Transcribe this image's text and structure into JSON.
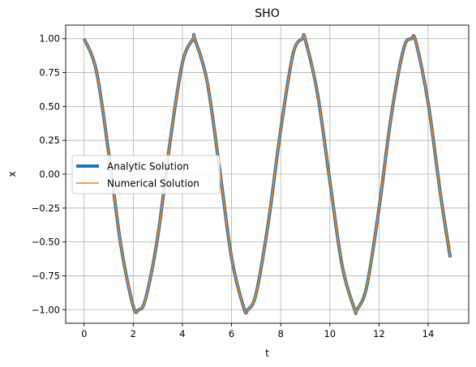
{
  "chart_data": {
    "type": "line",
    "title": "SHO",
    "xlabel": "t",
    "ylabel": "x",
    "xlim": [
      -0.75,
      15.65
    ],
    "ylim": [
      -1.1,
      1.1
    ],
    "xticks": [
      0,
      2,
      4,
      6,
      8,
      10,
      12,
      14
    ],
    "xtick_labels": [
      "0",
      "2",
      "4",
      "6",
      "8",
      "10",
      "12",
      "14"
    ],
    "yticks": [
      -1.0,
      -0.75,
      -0.5,
      -0.25,
      0.0,
      0.25,
      0.5,
      0.75,
      1.0
    ],
    "ytick_labels": [
      "−1.00",
      "−0.75",
      "−0.50",
      "−0.25",
      "0.00",
      "0.25",
      "0.50",
      "0.75",
      "1.00"
    ],
    "grid": true,
    "legend_position": "center-left",
    "series": [
      {
        "name": "Analytic Solution",
        "color": "#1f77b4",
        "x": [
          0,
          0.5,
          1.0,
          1.5,
          2.0,
          2.22,
          2.5,
          3.0,
          3.5,
          4.0,
          4.44,
          4.5,
          5.0,
          5.5,
          6.0,
          6.5,
          6.66,
          7.0,
          7.5,
          8.0,
          8.5,
          8.88,
          9.0,
          9.5,
          10.0,
          10.5,
          11.0,
          11.1,
          11.5,
          12.0,
          12.5,
          13.0,
          13.32,
          13.5,
          14.0,
          14.5,
          14.9
        ],
        "y": [
          1.0,
          0.761,
          0.157,
          -0.53,
          -0.975,
          -1.0,
          -0.92,
          -0.456,
          0.243,
          0.821,
          1.0,
          0.998,
          0.69,
          0.057,
          -0.617,
          -0.987,
          -1.0,
          -0.88,
          -0.352,
          0.328,
          0.886,
          1.0,
          0.992,
          0.591,
          -0.05,
          -0.676,
          -0.994,
          -1.0,
          -0.83,
          -0.253,
          0.432,
          0.924,
          1.0,
          0.977,
          0.526,
          -0.146,
          -0.615
        ]
      },
      {
        "name": "Numerical Solution",
        "color": "#ff7f0e",
        "x": [
          0,
          0.5,
          1.0,
          1.5,
          2.0,
          2.22,
          2.5,
          3.0,
          3.5,
          4.0,
          4.44,
          4.5,
          5.0,
          5.5,
          6.0,
          6.5,
          6.66,
          7.0,
          7.5,
          8.0,
          8.5,
          8.88,
          9.0,
          9.5,
          10.0,
          10.5,
          11.0,
          11.1,
          11.5,
          12.0,
          12.5,
          13.0,
          13.32,
          13.5,
          14.0,
          14.5,
          14.9
        ],
        "y": [
          1.0,
          0.761,
          0.157,
          -0.53,
          -0.975,
          -1.0,
          -0.92,
          -0.456,
          0.243,
          0.821,
          1.0,
          0.998,
          0.69,
          0.057,
          -0.617,
          -0.987,
          -1.0,
          -0.88,
          -0.352,
          0.328,
          0.886,
          1.0,
          0.992,
          0.591,
          -0.05,
          -0.676,
          -0.994,
          -1.0,
          -0.83,
          -0.253,
          0.432,
          0.924,
          1.0,
          0.977,
          0.526,
          -0.146,
          -0.615
        ]
      }
    ]
  }
}
